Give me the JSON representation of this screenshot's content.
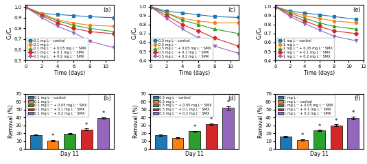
{
  "chart_data": [
    {
      "type": "line",
      "title": "(a)",
      "xlabel": "Time (days)",
      "ylabel": "Cₜ/Cₒ",
      "x": [
        0,
        2,
        4,
        6,
        8,
        11
      ],
      "xlim": [
        0,
        11
      ],
      "xticks": [
        0,
        2,
        4,
        6,
        8,
        10
      ],
      "ylim": [
        0.5,
        1.02
      ],
      "yticks": [
        0.5,
        0.6,
        0.7,
        0.8,
        0.9,
        1.0
      ],
      "legend": "lower left",
      "series": [
        {
          "name": "0.1 mg L⁻¹ control",
          "marker": "square",
          "values": [
            1.0,
            0.94,
            0.93,
            0.92,
            0.91,
            0.9
          ]
        },
        {
          "name": "0.1 mg L⁻¹",
          "marker": "circle",
          "values": [
            1.0,
            0.94,
            0.88,
            0.85,
            0.83,
            0.82
          ]
        },
        {
          "name": "0.1 mg L⁻¹ + 0.05 mg L⁻¹ SMX",
          "marker": "triangle_up",
          "values": [
            1.0,
            0.93,
            0.87,
            0.83,
            0.8,
            0.77
          ]
        },
        {
          "name": "0.1 mg L⁻¹ + 0.1 mg L⁻¹ SMX",
          "marker": "diamond",
          "values": [
            1.0,
            0.92,
            0.85,
            0.8,
            0.77,
            0.75
          ]
        },
        {
          "name": "0.1 mg L⁻¹ + 0.2 mg L⁻¹ SMX",
          "marker": "triangle_down",
          "values": [
            1.0,
            0.9,
            0.82,
            0.76,
            0.68,
            0.62
          ]
        }
      ]
    },
    {
      "type": "line",
      "title": "(c)",
      "xlabel": "Time (days)",
      "ylabel": "Cₜ/Cₒ",
      "x": [
        0,
        2,
        4,
        6,
        8,
        11
      ],
      "xlim": [
        0,
        11
      ],
      "xticks": [
        0,
        2,
        4,
        6,
        8,
        10
      ],
      "ylim": [
        0.4,
        1.02
      ],
      "yticks": [
        0.4,
        0.5,
        0.6,
        0.7,
        0.8,
        0.9,
        1.0
      ],
      "legend": "lower left",
      "series": [
        {
          "name": "0.5 mg L⁻¹ control",
          "marker": "square",
          "values": [
            1.0,
            0.95,
            0.93,
            0.91,
            0.89,
            0.88
          ]
        },
        {
          "name": "0.5 mg L⁻¹",
          "marker": "circle",
          "values": [
            1.0,
            0.93,
            0.87,
            0.84,
            0.82,
            0.82
          ]
        },
        {
          "name": "0.5 mg L⁻¹ + 0.05 mg L⁻¹ SMX",
          "marker": "triangle_up",
          "values": [
            1.0,
            0.93,
            0.85,
            0.8,
            0.75,
            0.7
          ]
        },
        {
          "name": "0.5 mg L⁻¹ + 0.1 mg L⁻¹ SMX",
          "marker": "diamond",
          "values": [
            1.0,
            0.9,
            0.8,
            0.73,
            0.65,
            0.56
          ]
        },
        {
          "name": "0.5 mg L⁻¹ + 0.2 mg L⁻¹ SMX",
          "marker": "triangle_down",
          "values": [
            1.0,
            0.87,
            0.75,
            0.65,
            0.56,
            0.48
          ]
        }
      ]
    },
    {
      "type": "line",
      "title": "(e)",
      "xlabel": "Time (days)",
      "ylabel": "Cₜ/Cₒ",
      "x": [
        0,
        2,
        4,
        6,
        8,
        11
      ],
      "xlim": [
        0,
        12
      ],
      "xticks": [
        0,
        2,
        4,
        6,
        8,
        10,
        12
      ],
      "ylim": [
        0.4,
        1.02
      ],
      "yticks": [
        0.4,
        0.5,
        0.6,
        0.7,
        0.8,
        0.9,
        1.0
      ],
      "legend": "lower left",
      "series": [
        {
          "name": "1 mg L⁻¹ control",
          "marker": "square",
          "values": [
            1.0,
            0.95,
            0.93,
            0.91,
            0.89,
            0.86
          ]
        },
        {
          "name": "1 mg L⁻¹",
          "marker": "circle",
          "values": [
            1.0,
            0.94,
            0.9,
            0.87,
            0.84,
            0.82
          ]
        },
        {
          "name": "1 mg L⁻¹ + 0.05 mg L⁻¹ SMX",
          "marker": "triangle_up",
          "values": [
            1.0,
            0.93,
            0.87,
            0.82,
            0.78,
            0.75
          ]
        },
        {
          "name": "1 mg L⁻¹ + 0.1 mg L⁻¹ SMX",
          "marker": "diamond",
          "values": [
            1.0,
            0.91,
            0.84,
            0.78,
            0.73,
            0.7
          ]
        },
        {
          "name": "1 mg L⁻¹ + 0.2 mg L⁻¹ SMX",
          "marker": "triangle_down",
          "values": [
            1.0,
            0.89,
            0.81,
            0.74,
            0.67,
            0.62
          ]
        }
      ]
    },
    {
      "type": "bar",
      "title": "(b)",
      "xlabel": "Day 11",
      "ylabel": "Removal (%)",
      "ylim": [
        0,
        70
      ],
      "yticks": [
        0,
        10,
        20,
        30,
        40,
        50,
        60,
        70
      ],
      "tick_labels": "y",
      "legend": "upper left",
      "categories": [
        "0.1 mg L⁻¹ control",
        "0.1 mg L⁻¹",
        "0.1 mg L⁻¹ + 0.05 mg L⁻¹ SMX",
        "0.1 mg L⁻¹ + 0.1 mg L⁻¹ SMX",
        "0.1 mg L⁻¹ + 0.2 mg L⁻¹ SMX"
      ],
      "values": [
        18.0,
        11.0,
        19.5,
        25.0,
        39.5
      ],
      "errors": [
        0.7,
        0.8,
        0.7,
        1.0,
        0.7
      ],
      "annotations": [
        null,
        "*",
        null,
        "*",
        "*"
      ]
    },
    {
      "type": "bar",
      "title": "(d)",
      "xlabel": "Day 11",
      "ylabel": "Removal (%)",
      "ylim": [
        0,
        70
      ],
      "yticks": [
        0,
        10,
        20,
        30,
        40,
        50,
        60,
        70
      ],
      "tick_labels": "y",
      "legend": "upper left",
      "categories": [
        "0.5 mg L⁻¹ control",
        "0.5 mg L⁻¹",
        "0.5 mg L⁻¹ + 0.05 mg L⁻¹ SMX",
        "0.5 mg L⁻¹ + 0.1 mg L⁻¹ SMX",
        "0.5 mg L⁻¹ + 0.2 mg L⁻¹ SMX"
      ],
      "values": [
        17.5,
        14.5,
        22.5,
        31.5,
        52.0
      ],
      "errors": [
        0.8,
        0.8,
        0.8,
        1.2,
        2.5
      ],
      "annotations": [
        null,
        null,
        "*",
        "*",
        "*"
      ]
    },
    {
      "type": "bar",
      "title": "(f)",
      "xlabel": "Day 11",
      "ylabel": "Removal (%)",
      "ylim": [
        0,
        70
      ],
      "yticks": [
        0,
        10,
        20,
        30,
        40,
        50,
        60,
        70
      ],
      "tick_labels": "y",
      "legend": "upper left",
      "categories": [
        "1 mg L⁻¹",
        "1 mg L⁻¹ control",
        "1 mg L⁻¹ + 0.05 mg L⁻¹ SMX",
        "1 mg L⁻¹ + 0.1 mg L⁻¹ SMX",
        "1 mg L⁻¹ + 0.2 mg L⁻¹ SMX"
      ],
      "values": [
        16.0,
        12.0,
        23.5,
        30.0,
        39.5
      ],
      "errors": [
        1.0,
        0.8,
        0.8,
        1.2,
        1.5
      ],
      "annotations": [
        null,
        "*",
        "*",
        "*",
        "*"
      ]
    }
  ]
}
